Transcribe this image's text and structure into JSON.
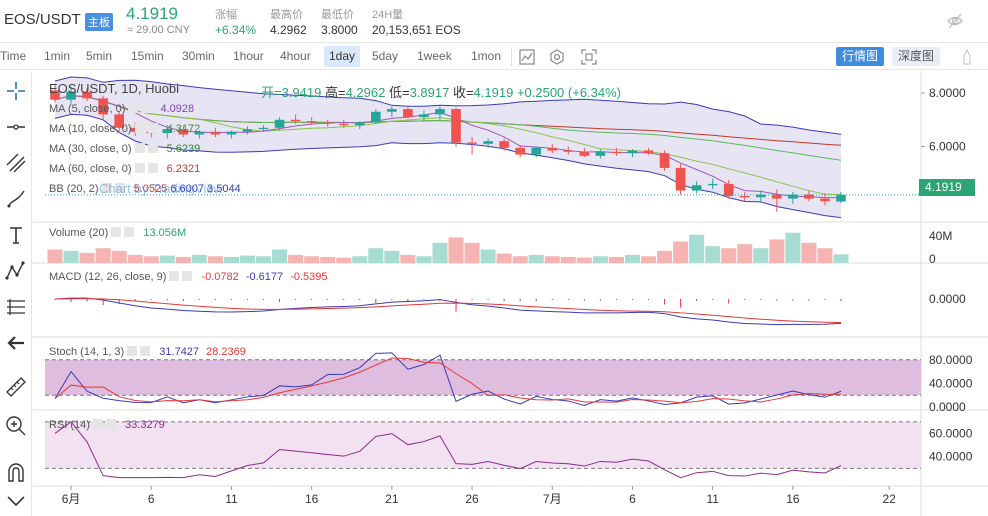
{
  "header": {
    "pair": "EOS/USDT",
    "main_tag": "主板",
    "price": "4.1919",
    "cny": "≈ 29.00 CNY",
    "change_label": "涨幅",
    "change_value": "+6.34%",
    "high_label": "最高价",
    "high_value": "4.2962",
    "low_label": "最低价",
    "low_value": "3.8000",
    "vol_label": "24H量",
    "vol_value": "20,153,651 EOS"
  },
  "toolbar": {
    "intervals": [
      "Time",
      "1min",
      "5min",
      "15min",
      "30min",
      "1hour",
      "4hour",
      "1day",
      "5day",
      "1week",
      "1mon"
    ],
    "active_interval": "1day",
    "btn_kline": "行情图",
    "btn_depth": "深度图"
  },
  "chart_meta": {
    "title": "EOS/USDT, 1D, Huobi",
    "open_label": "开=",
    "open": "3.9419",
    "high_label": "高=",
    "high": "4.2962",
    "low_label": "低=",
    "low": "3.8917",
    "close_label": "收=",
    "close": "4.1919",
    "change": "+0.2500 (+6.34%)",
    "watermark": "Chart by TradingView",
    "last_price_tag": "4.1919"
  },
  "legends": {
    "ma5_name": "MA (5, close, 0)",
    "ma5_val": "4.0928",
    "ma10_name": "MA (10, close, 0)",
    "ma10_val": "4.3172",
    "ma30_name": "MA (30, close, 0)",
    "ma30_val": "5.6239",
    "ma60_name": "MA (60, close, 0)",
    "ma60_val": "6.2321",
    "bb_name": "BB (20, 2)",
    "bb_v1": "5.0525",
    "bb_v2": "6.6007",
    "bb_v3": "3.5044",
    "vol_name": "Volume (20)",
    "vol_val": "13.056M",
    "macd_name": "MACD (12, 26, close, 9)",
    "macd_v1": "-0.0782",
    "macd_v2": "-0.6177",
    "macd_v3": "-0.5395",
    "stoch_name": "Stoch (14, 1, 3)",
    "stoch_v1": "31.7427",
    "stoch_v2": "28.2369",
    "rsi_name": "RSI (14)",
    "rsi_val": "33.3279"
  },
  "axes": {
    "price_ticks": [
      "8.0000",
      "6.0000"
    ],
    "volume_ticks": [
      "40M",
      "0"
    ],
    "macd_ticks": [
      "0.0000"
    ],
    "stoch_ticks": [
      "80.0000",
      "40.0000",
      "0.0000"
    ],
    "rsi_ticks": [
      "60.0000",
      "40.0000"
    ],
    "date_labels": [
      "6月",
      "6",
      "11",
      "16",
      "21",
      "26",
      "7月",
      "6",
      "11",
      "16",
      "22"
    ]
  },
  "colors": {
    "up": "#26a69a",
    "down": "#ef5350",
    "bb_fill": "#c9c3e6",
    "stoch_fill": "#d9b1d9",
    "rsi_fill": "#f1e1f1"
  },
  "chart_data": {
    "type": "candlestick",
    "dates": [
      "05-31",
      "06-01",
      "06-02",
      "06-03",
      "06-04",
      "06-05",
      "06-06",
      "06-07",
      "06-08",
      "06-09",
      "06-10",
      "06-11",
      "06-12",
      "06-13",
      "06-14",
      "06-15",
      "06-16",
      "06-17",
      "06-18",
      "06-19",
      "06-20",
      "06-21",
      "06-22",
      "06-23",
      "06-24",
      "06-25",
      "06-26",
      "06-27",
      "06-28",
      "06-29",
      "06-30",
      "07-01",
      "07-02",
      "07-03",
      "07-04",
      "07-05",
      "07-06",
      "07-07",
      "07-08",
      "07-09",
      "07-10",
      "07-11",
      "07-12",
      "07-13",
      "07-14",
      "07-15",
      "07-16",
      "07-17",
      "07-18",
      "07-19"
    ],
    "candles": [
      [
        8.1,
        8.35,
        7.65,
        7.75
      ],
      [
        7.75,
        8.25,
        7.6,
        8.05
      ],
      [
        8.05,
        8.2,
        7.7,
        7.8
      ],
      [
        7.8,
        7.9,
        7.0,
        7.2
      ],
      [
        7.2,
        7.3,
        6.5,
        6.7
      ],
      [
        6.7,
        6.9,
        6.4,
        6.55
      ],
      [
        6.55,
        6.75,
        6.35,
        6.5
      ],
      [
        6.5,
        6.8,
        6.3,
        6.65
      ],
      [
        6.65,
        6.75,
        6.35,
        6.45
      ],
      [
        6.45,
        6.6,
        6.3,
        6.55
      ],
      [
        6.55,
        6.7,
        6.35,
        6.45
      ],
      [
        6.45,
        6.6,
        6.3,
        6.55
      ],
      [
        6.55,
        6.75,
        6.45,
        6.65
      ],
      [
        6.65,
        6.8,
        6.55,
        6.7
      ],
      [
        6.7,
        7.1,
        6.6,
        7.0
      ],
      [
        7.0,
        7.2,
        6.85,
        6.95
      ],
      [
        6.95,
        7.1,
        6.8,
        6.9
      ],
      [
        6.9,
        7.0,
        6.75,
        6.85
      ],
      [
        6.85,
        7.0,
        6.7,
        6.8
      ],
      [
        6.8,
        6.95,
        6.65,
        6.9
      ],
      [
        6.9,
        7.4,
        6.85,
        7.3
      ],
      [
        7.3,
        7.5,
        7.1,
        7.4
      ],
      [
        7.4,
        7.55,
        7.05,
        7.1
      ],
      [
        7.1,
        7.35,
        6.95,
        7.2
      ],
      [
        7.2,
        7.5,
        7.0,
        7.4
      ],
      [
        7.4,
        7.45,
        6.0,
        6.15
      ],
      [
        6.15,
        6.35,
        5.7,
        6.1
      ],
      [
        6.1,
        6.3,
        5.95,
        6.2
      ],
      [
        6.2,
        6.3,
        5.85,
        5.95
      ],
      [
        5.95,
        6.05,
        5.6,
        5.7
      ],
      [
        5.7,
        6.0,
        5.6,
        5.95
      ],
      [
        5.95,
        6.1,
        5.75,
        5.85
      ],
      [
        5.85,
        6.0,
        5.7,
        5.8
      ],
      [
        5.8,
        5.95,
        5.6,
        5.65
      ],
      [
        5.65,
        5.9,
        5.55,
        5.8
      ],
      [
        5.8,
        5.95,
        5.65,
        5.75
      ],
      [
        5.75,
        5.9,
        5.6,
        5.85
      ],
      [
        5.85,
        5.95,
        5.7,
        5.75
      ],
      [
        5.75,
        5.85,
        5.1,
        5.2
      ],
      [
        5.2,
        5.35,
        4.2,
        4.35
      ],
      [
        4.35,
        4.7,
        4.25,
        4.55
      ],
      [
        4.55,
        4.8,
        4.4,
        4.6
      ],
      [
        4.6,
        4.75,
        4.05,
        4.15
      ],
      [
        4.15,
        4.3,
        3.95,
        4.1
      ],
      [
        4.1,
        4.35,
        3.9,
        4.2
      ],
      [
        4.2,
        4.4,
        3.55,
        4.05
      ],
      [
        4.05,
        4.3,
        3.85,
        4.2
      ],
      [
        4.2,
        4.35,
        3.95,
        4.05
      ],
      [
        4.05,
        4.25,
        3.8,
        3.95
      ],
      [
        3.94,
        4.3,
        3.89,
        4.19
      ]
    ],
    "volume_millions": [
      20,
      18,
      15,
      22,
      18,
      12,
      10,
      11,
      9,
      12,
      10,
      9,
      11,
      10,
      20,
      12,
      10,
      9,
      8,
      10,
      22,
      18,
      12,
      10,
      30,
      38,
      30,
      20,
      14,
      10,
      12,
      10,
      9,
      8,
      10,
      9,
      12,
      10,
      18,
      32,
      42,
      25,
      22,
      28,
      22,
      35,
      45,
      30,
      22,
      13
    ],
    "ylim_price": [
      3.4,
      8.6
    ],
    "macd_last": {
      "macd": -0.6177,
      "signal": -0.5395,
      "hist": -0.0782
    },
    "stoch_last": {
      "k": 31.7427,
      "d": 28.2369
    },
    "rsi_last": 33.3279
  }
}
